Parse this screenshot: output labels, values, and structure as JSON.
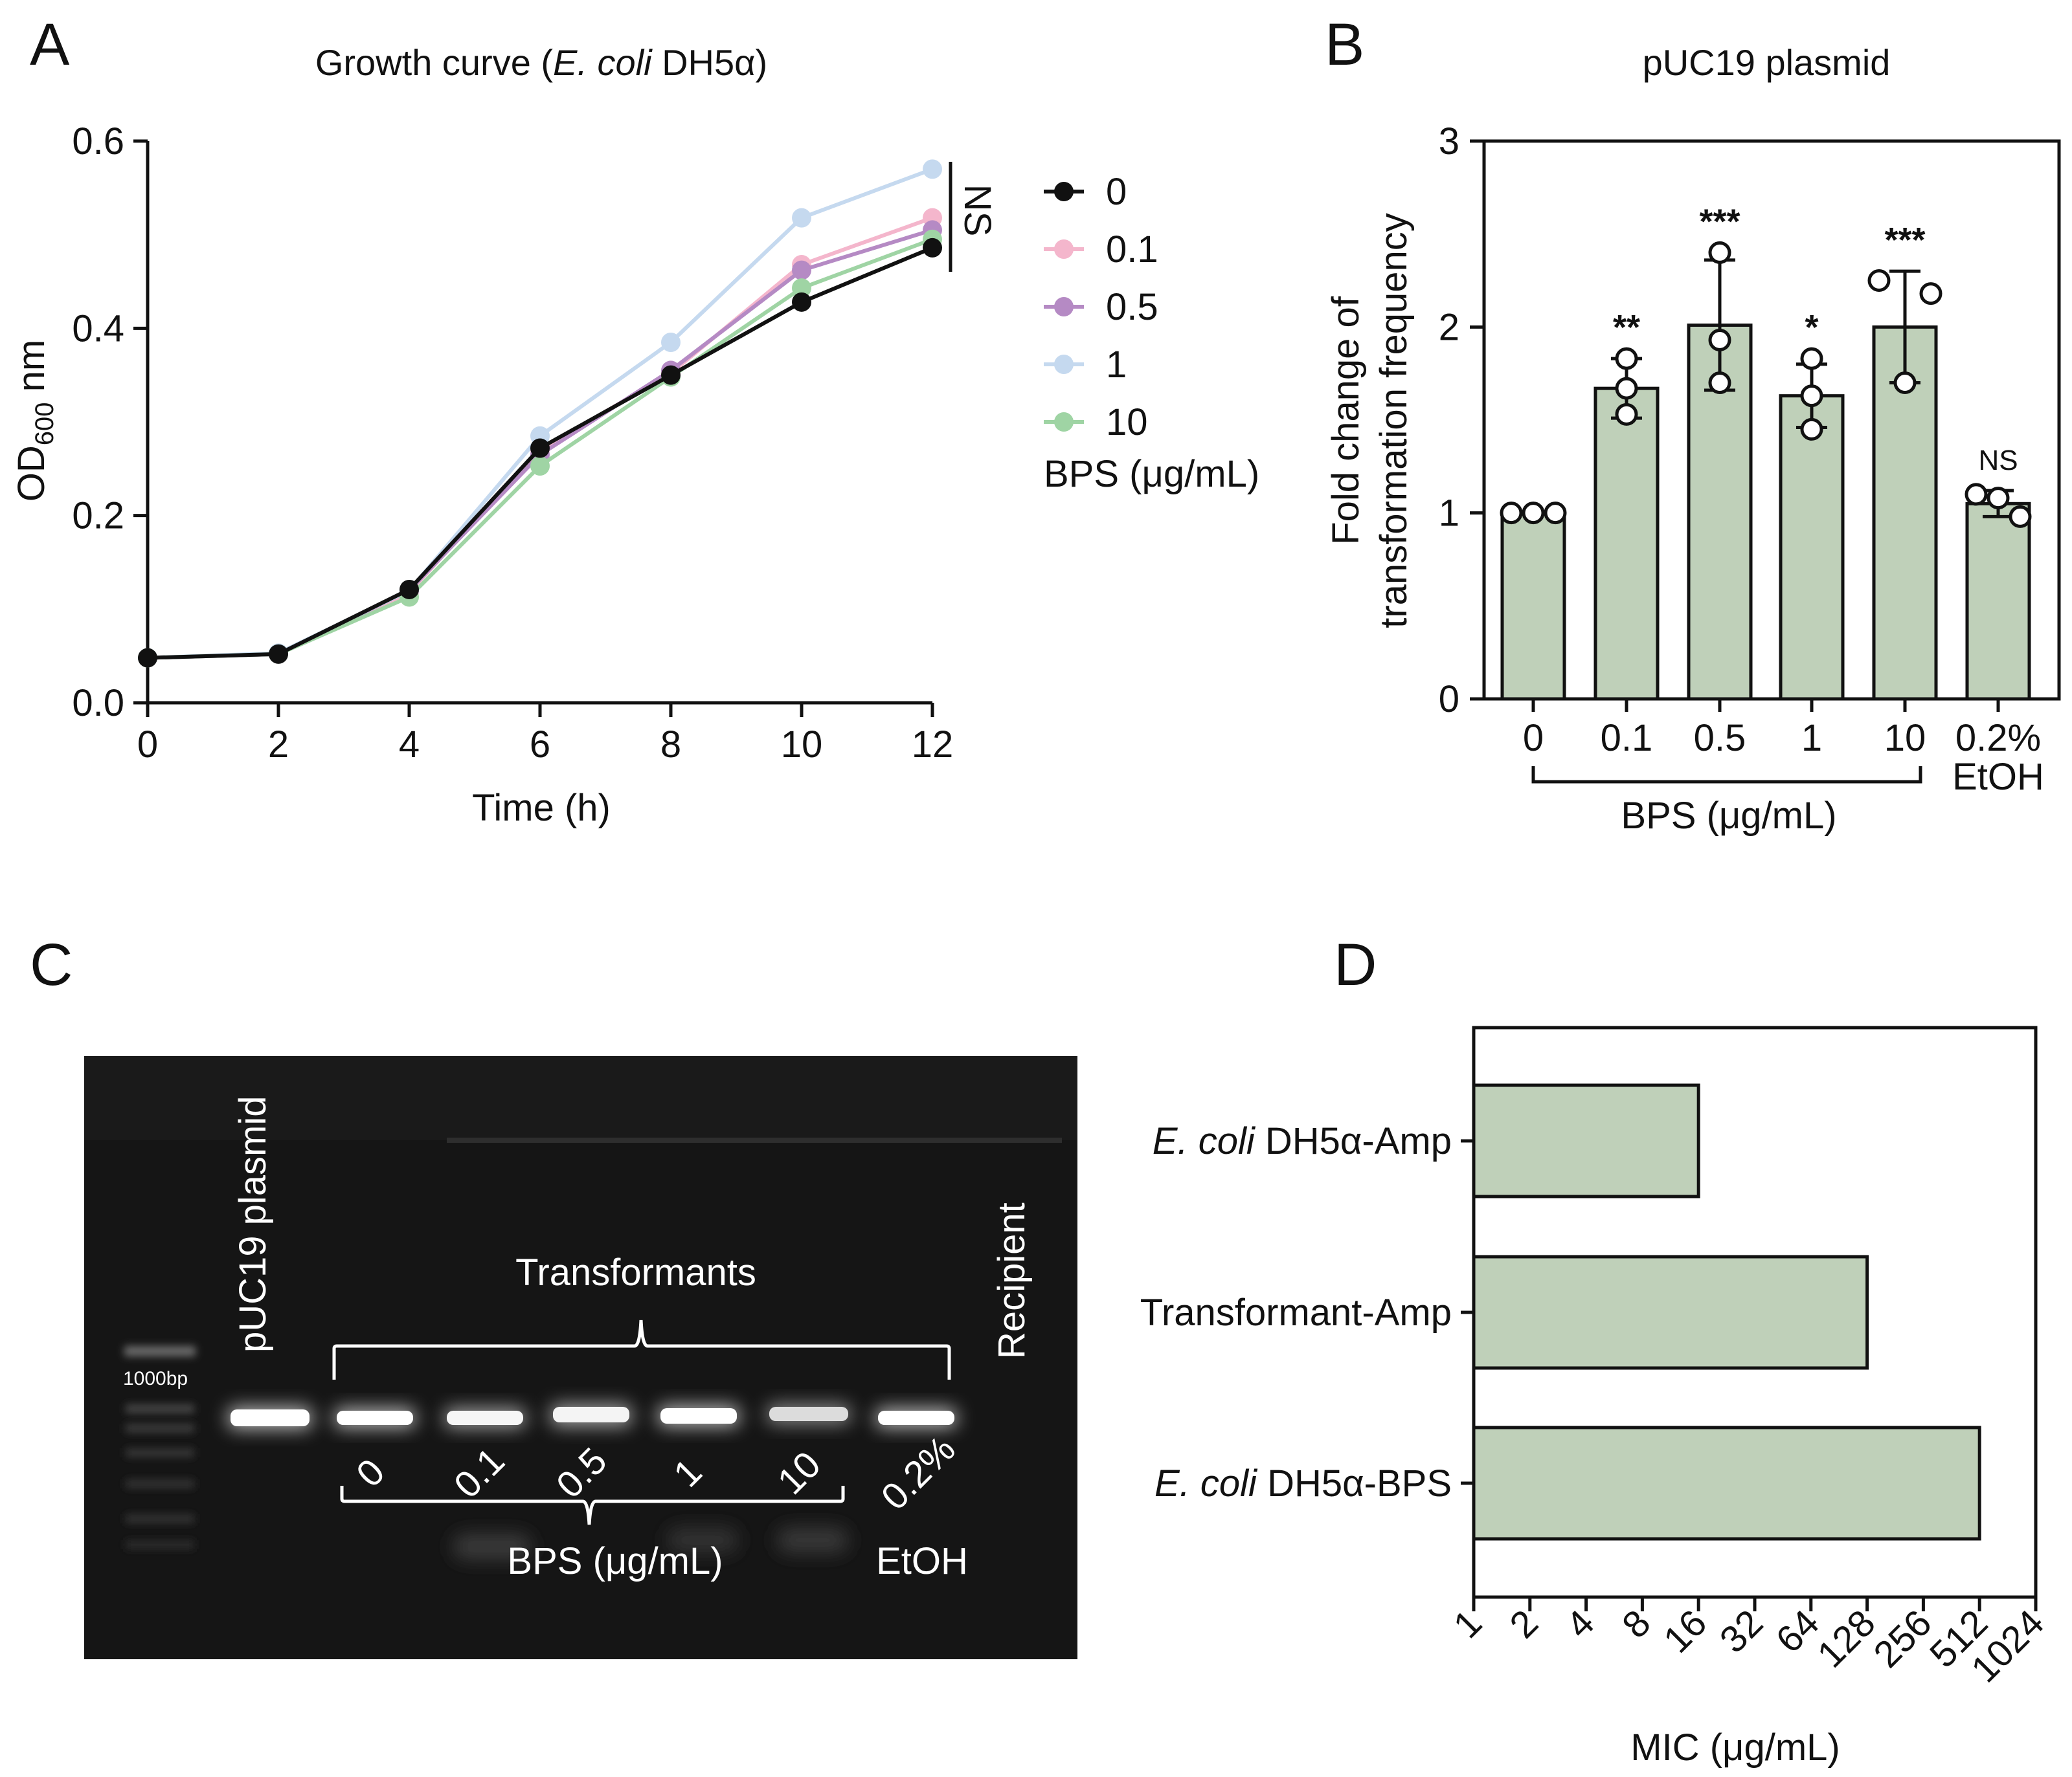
{
  "panel_labels": [
    "A",
    "B",
    "C",
    "D"
  ],
  "colors": {
    "series_0": "#111111",
    "series_0.1": "#f4b6cc",
    "series_0.5": "#b58ac4",
    "series_1": "#c5d9ef",
    "series_10": "#9fd4a4",
    "bar_fill": "#bfd0b9",
    "bar_stroke": "#111111",
    "gel_bg": "#151515"
  },
  "chart_data": [
    {
      "panel": "A",
      "type": "line",
      "title_prefix": "Growth curve (",
      "title_italic": "E. coli",
      "title_suffix": " DH5α)",
      "xlabel": "Time (h)",
      "ylabel_main": "OD",
      "ylabel_sub": "600",
      "ylabel_unit": " nm",
      "x": [
        0,
        2,
        4,
        6,
        8,
        10,
        12
      ],
      "x_ticks": [
        "0",
        "2",
        "4",
        "6",
        "8",
        "10",
        "12"
      ],
      "y_ticks": [
        "0.0",
        "0.2",
        "0.4",
        "0.6"
      ],
      "xlim": [
        0,
        12
      ],
      "ylim": [
        0,
        0.6
      ],
      "series": [
        {
          "name": "0.1",
          "color_key": "series_0.1",
          "values": [
            0.048,
            0.052,
            0.118,
            0.27,
            0.352,
            0.468,
            0.518
          ]
        },
        {
          "name": "0.5",
          "color_key": "series_0.5",
          "values": [
            0.048,
            0.052,
            0.12,
            0.265,
            0.355,
            0.462,
            0.505
          ]
        },
        {
          "name": "1",
          "color_key": "series_1",
          "values": [
            0.048,
            0.053,
            0.12,
            0.285,
            0.385,
            0.518,
            0.57
          ]
        },
        {
          "name": "10",
          "color_key": "series_10",
          "values": [
            0.048,
            0.052,
            0.113,
            0.253,
            0.348,
            0.443,
            0.495
          ]
        },
        {
          "name": "0",
          "color_key": "series_0",
          "values": [
            0.048,
            0.052,
            0.121,
            0.272,
            0.35,
            0.428,
            0.486
          ]
        }
      ],
      "legend_order": [
        "0",
        "0.1",
        "0.5",
        "1",
        "10"
      ],
      "legend_title": "BPS (μg/mL)",
      "annotation": "NS"
    },
    {
      "panel": "B",
      "type": "bar",
      "title": "pUC19 plasmid",
      "ylabel_line1": "Fold change of",
      "ylabel_line2": "transformation frequency",
      "y_ticks": [
        "0",
        "1",
        "2",
        "3"
      ],
      "ylim": [
        0,
        3
      ],
      "categories": [
        "0",
        "0.1",
        "0.5",
        "1",
        "10",
        "0.2%"
      ],
      "category_sub": [
        "",
        "",
        "",
        "",
        "",
        "EtOH"
      ],
      "group_label": "BPS (μg/mL)",
      "values": [
        1.0,
        1.67,
        2.01,
        1.63,
        2.0,
        1.05
      ],
      "errors": [
        0.0,
        0.16,
        0.35,
        0.17,
        0.3,
        0.07
      ],
      "points": [
        [
          1.0,
          1.0,
          1.0
        ],
        [
          1.83,
          1.67,
          1.53
        ],
        [
          2.4,
          1.93,
          1.7
        ],
        [
          1.83,
          1.63,
          1.45
        ],
        [
          2.25,
          2.18,
          1.7
        ],
        [
          1.1,
          1.08,
          0.98
        ]
      ],
      "significance": [
        "",
        "**",
        "***",
        "*",
        "***",
        "NS"
      ]
    },
    {
      "panel": "D",
      "type": "bar",
      "orientation": "horizontal",
      "xlabel": "MIC (μg/mL)",
      "x_ticks": [
        "1",
        "2",
        "4",
        "8",
        "16",
        "32",
        "64",
        "128",
        "256",
        "512",
        "1024"
      ],
      "xscale": "log2",
      "categories": [
        "E. coli DH5α-Amp",
        "Transformant-Amp",
        "E. coli DH5α-BPS"
      ],
      "category_italic": [
        "E. coli",
        "",
        "E. coli"
      ],
      "category_rest": [
        " DH5α-Amp",
        "Transformant-Amp",
        " DH5α-BPS"
      ],
      "values": [
        16,
        128,
        512
      ]
    }
  ],
  "gel": {
    "ladder_label": "1000bp",
    "plasmid_label": "pUC19 plasmid",
    "transformants_label": "Transformants",
    "recipient_label": "Recipient",
    "lane_labels": [
      "0",
      "0.1",
      "0.5",
      "1",
      "10",
      "0.2%"
    ],
    "bps_label": "BPS (μg/mL)",
    "etoh_label": "EtOH"
  }
}
